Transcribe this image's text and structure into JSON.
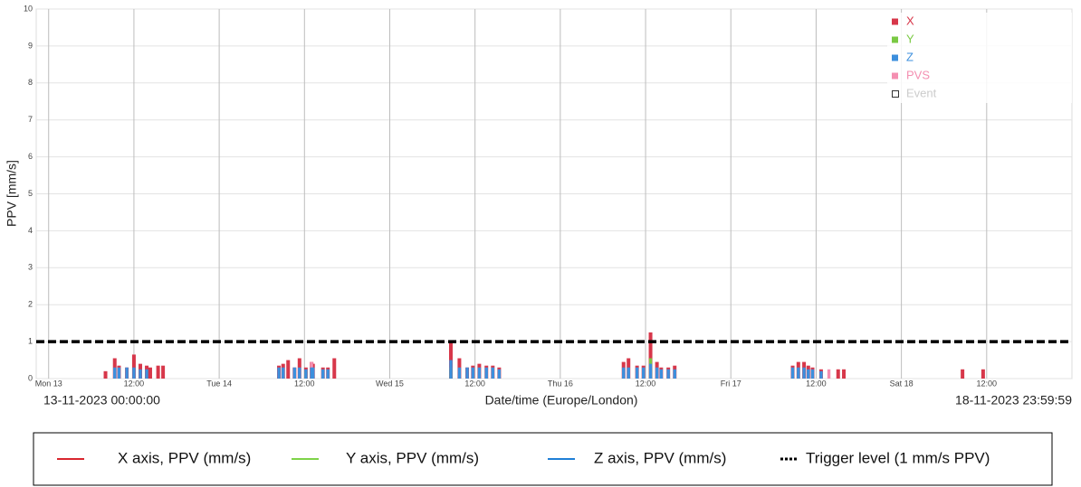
{
  "chart_data": {
    "type": "bar",
    "ylabel": "PPV [mm/s]",
    "xlabel": "Date/time (Europe/London)",
    "range_start": "13-11-2023 00:00:00",
    "range_end": "18-11-2023 23:59:59",
    "xlim": [
      -1.75,
      144
    ],
    "ylim": [
      0,
      10
    ],
    "yticks": [
      0,
      1,
      2,
      3,
      4,
      5,
      6,
      7,
      8,
      9,
      10
    ],
    "xticks": [
      {
        "value": 0,
        "label": "Mon 13"
      },
      {
        "value": 12,
        "label": "12:00"
      },
      {
        "value": 24,
        "label": "Tue 14"
      },
      {
        "value": 36,
        "label": "12:00"
      },
      {
        "value": 48,
        "label": "Wed 15"
      },
      {
        "value": 60,
        "label": "12:00"
      },
      {
        "value": 72,
        "label": "Thu 16"
      },
      {
        "value": 84,
        "label": "12:00"
      },
      {
        "value": 96,
        "label": "Fri 17"
      },
      {
        "value": 108,
        "label": "12:00"
      },
      {
        "value": 120,
        "label": "Sat 18"
      },
      {
        "value": 132,
        "label": "12:00"
      }
    ],
    "grid": true,
    "x": [
      8.0,
      9.3,
      9.9,
      11.0,
      12.0,
      12.9,
      13.8,
      14.3,
      15.4,
      16.1,
      32.4,
      33.0,
      33.7,
      34.6,
      35.3,
      36.2,
      37.0,
      37.2,
      38.6,
      39.3,
      40.2,
      56.6,
      57.8,
      58.9,
      59.7,
      60.6,
      61.6,
      62.5,
      63.4,
      80.9,
      81.6,
      82.8,
      83.7,
      84.7,
      85.6,
      86.2,
      87.2,
      88.1,
      104.7,
      105.5,
      106.3,
      106.9,
      107.5,
      108.7,
      109.8,
      111.1,
      111.9,
      128.6,
      131.5
    ],
    "series": [
      {
        "name": "X",
        "color": "#d7374a",
        "values": [
          0.2,
          0.55,
          0.35,
          0.3,
          0.65,
          0.4,
          0.35,
          0.3,
          0.35,
          0.35,
          0.35,
          0.4,
          0.5,
          0.3,
          0.55,
          0.3,
          0.45,
          0.4,
          0.3,
          0.3,
          0.55,
          1.0,
          0.55,
          0.3,
          0.35,
          0.4,
          0.35,
          0.35,
          0.3,
          0.45,
          0.55,
          0.35,
          0.35,
          1.25,
          0.45,
          0.3,
          0.3,
          0.35,
          0.35,
          0.45,
          0.45,
          0.35,
          0.3,
          0.25,
          null,
          0.25,
          0.25,
          0.25,
          0.25
        ]
      },
      {
        "name": "Y",
        "color": "#7ac943",
        "values": [
          null,
          null,
          null,
          null,
          null,
          null,
          null,
          null,
          null,
          null,
          null,
          null,
          null,
          null,
          null,
          0.2,
          null,
          null,
          null,
          null,
          null,
          0.3,
          null,
          null,
          null,
          null,
          null,
          null,
          null,
          null,
          null,
          null,
          null,
          0.55,
          null,
          null,
          null,
          null,
          null,
          null,
          null,
          null,
          null,
          null,
          null,
          null,
          null,
          null,
          null
        ]
      },
      {
        "name": "Z",
        "color": "#3c8fdd",
        "values": [
          null,
          0.3,
          0.3,
          0.3,
          0.3,
          0.25,
          0.25,
          null,
          null,
          null,
          0.3,
          0.3,
          null,
          0.3,
          0.3,
          0.25,
          0.3,
          0.3,
          0.25,
          0.25,
          null,
          0.5,
          0.3,
          0.3,
          0.3,
          0.3,
          0.3,
          0.3,
          0.25,
          0.3,
          0.3,
          0.3,
          0.3,
          0.4,
          0.3,
          0.25,
          0.25,
          0.25,
          0.3,
          0.3,
          0.3,
          0.25,
          0.25,
          0.2,
          null,
          null,
          null,
          null,
          null
        ]
      },
      {
        "name": "PVS",
        "color": "#f48fb1",
        "values": [
          null,
          null,
          null,
          null,
          null,
          null,
          null,
          null,
          null,
          null,
          null,
          null,
          null,
          null,
          null,
          null,
          0.45,
          null,
          null,
          null,
          null,
          null,
          null,
          null,
          null,
          null,
          null,
          null,
          null,
          null,
          null,
          null,
          null,
          null,
          null,
          null,
          null,
          null,
          null,
          null,
          null,
          null,
          null,
          null,
          0.25,
          null,
          null,
          null,
          null
        ]
      }
    ],
    "event_legend": "Event",
    "trigger_level": 1,
    "bottom_legend": [
      {
        "label": "X axis, PPV (mm/s)",
        "color": "#d9262e",
        "style": "solid"
      },
      {
        "label": "Y axis, PPV (mm/s)",
        "color": "#7ed348",
        "style": "solid"
      },
      {
        "label": "Z axis, PPV (mm/s)",
        "color": "#1f7fd6",
        "style": "solid"
      },
      {
        "label": "Trigger level (1 mm/s PPV)",
        "color": "#000000",
        "style": "dashed"
      }
    ]
  }
}
